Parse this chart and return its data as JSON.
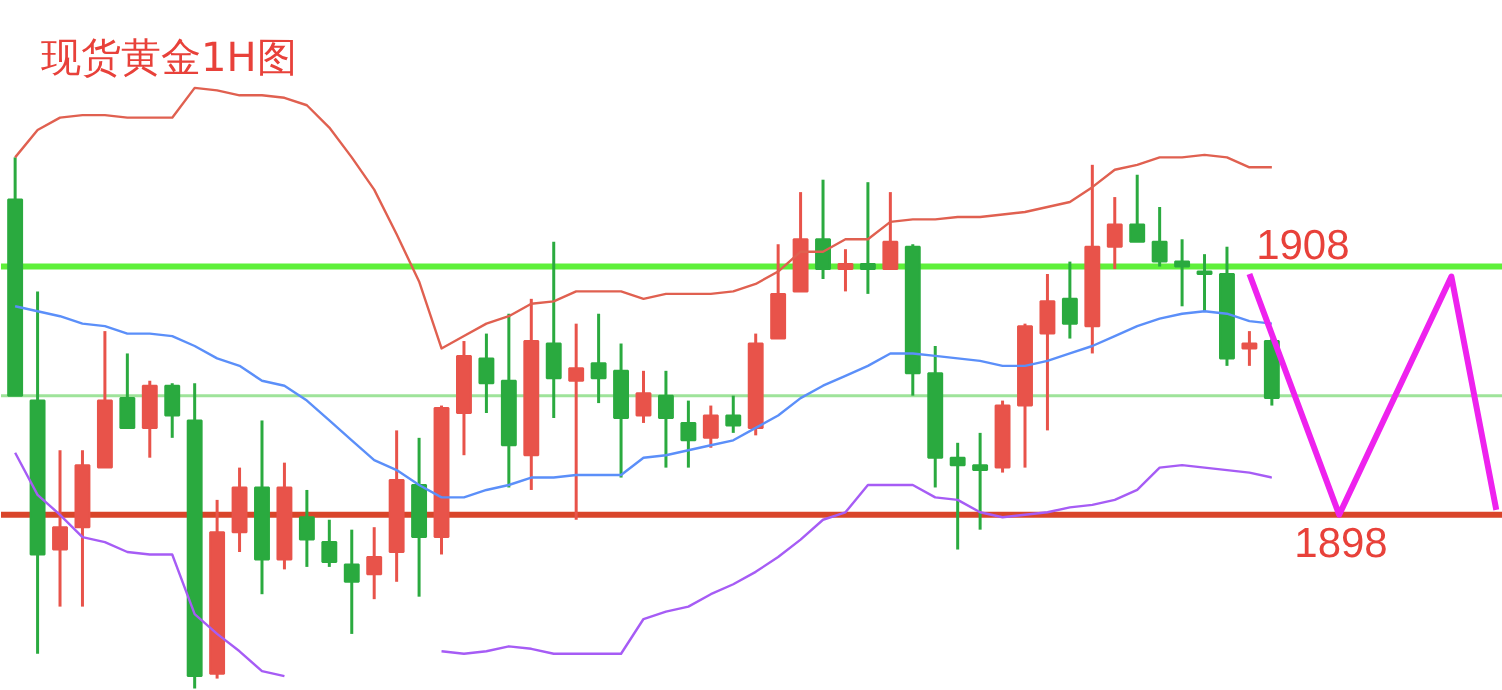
{
  "chart_data": {
    "type": "candlestick",
    "title": "现货黄金1H图",
    "categories": [
      null,
      null,
      null,
      null,
      null,
      null,
      null,
      null,
      null,
      null,
      null,
      null,
      null,
      null,
      null,
      null,
      null,
      null,
      null,
      null,
      null,
      null,
      null,
      null,
      null,
      null,
      null,
      null,
      null,
      null,
      null,
      null,
      null,
      null,
      null,
      null,
      null,
      null,
      null,
      null,
      null,
      null,
      null,
      null,
      null,
      null,
      null,
      null,
      null,
      null,
      null,
      null,
      null,
      null,
      null,
      null,
      null,
      null,
      null,
      null,
      null,
      null,
      null,
      null,
      null,
      null,
      null
    ],
    "ohlc": [
      [
        1910.7,
        1912.4,
        1902.8,
        1902.8
      ],
      [
        1902.6,
        1907.0,
        1892.4,
        1896.4
      ],
      [
        1896.6,
        1900.6,
        1894.3,
        1897.5
      ],
      [
        1897.5,
        1900.6,
        1894.3,
        1900.0
      ],
      [
        1899.9,
        1905.4,
        1899.9,
        1902.6
      ],
      [
        1902.7,
        1904.5,
        1901.5,
        1901.5
      ],
      [
        1901.5,
        1903.4,
        1900.3,
        1903.2
      ],
      [
        1903.2,
        1903.3,
        1901.1,
        1902.0
      ],
      [
        1901.8,
        1903.3,
        1891.0,
        1891.5
      ],
      [
        1891.6,
        1898.6,
        1891.4,
        1897.3
      ],
      [
        1897.3,
        1899.9,
        1896.5,
        1899.1
      ],
      [
        1899.1,
        1901.8,
        1894.8,
        1896.2
      ],
      [
        1896.2,
        1900.1,
        1895.8,
        1899.1
      ],
      [
        1897.9,
        1899.0,
        1895.9,
        1897.0
      ],
      [
        1896.9,
        1897.8,
        1895.9,
        1896.1
      ],
      [
        1896.0,
        1897.4,
        1893.2,
        1895.3
      ],
      [
        1895.6,
        1897.5,
        1894.6,
        1896.3
      ],
      [
        1896.5,
        1901.4,
        1895.3,
        1899.4
      ],
      [
        1899.2,
        1901.1,
        1894.7,
        1897.1
      ],
      [
        1897.1,
        1902.4,
        1896.4,
        1902.3
      ],
      [
        1902.1,
        1905.0,
        1900.4,
        1904.4
      ],
      [
        1904.3,
        1905.3,
        1902.1,
        1903.3
      ],
      [
        1903.4,
        1906.1,
        1899.1,
        1900.8
      ],
      [
        1900.4,
        1906.7,
        1899.0,
        1905.0
      ],
      [
        1904.9,
        1909.0,
        1901.9,
        1903.5
      ],
      [
        1903.4,
        1905.7,
        1897.8,
        1903.9
      ],
      [
        1904.1,
        1906.1,
        1902.5,
        1903.5
      ],
      [
        1903.8,
        1904.9,
        1899.5,
        1901.9
      ],
      [
        1902.0,
        1903.8,
        1901.7,
        1902.9
      ],
      [
        1902.8,
        1903.8,
        1899.9,
        1901.9
      ],
      [
        1901.7,
        1902.6,
        1899.9,
        1901.0
      ],
      [
        1901.1,
        1902.4,
        1900.7,
        1902.0
      ],
      [
        1902.0,
        1902.8,
        1901.3,
        1901.6
      ],
      [
        1901.5,
        1905.3,
        1901.2,
        1904.9
      ],
      [
        1905.1,
        1908.9,
        1905.1,
        1906.9
      ],
      [
        1907.0,
        1911.0,
        1907.0,
        1909.1
      ],
      [
        1909.1,
        1911.5,
        1907.5,
        1907.9
      ],
      [
        1907.9,
        1908.7,
        1907.0,
        1908.1
      ],
      [
        1908.1,
        1911.4,
        1906.9,
        1907.9
      ],
      [
        1907.9,
        1911.0,
        1907.9,
        1909.0
      ],
      [
        1908.8,
        1908.9,
        1902.8,
        1903.7
      ],
      [
        1903.7,
        1904.8,
        1899.1,
        1900.3
      ],
      [
        1900.3,
        1900.9,
        1896.6,
        1900.0
      ],
      [
        1900.0,
        1901.3,
        1897.4,
        1899.8
      ],
      [
        1899.9,
        1902.6,
        1899.7,
        1902.4
      ],
      [
        1902.4,
        1905.7,
        1899.9,
        1905.6
      ],
      [
        1905.3,
        1907.7,
        1901.4,
        1906.6
      ],
      [
        1906.7,
        1908.2,
        1905.1,
        1905.7
      ],
      [
        1905.6,
        1912.1,
        1904.5,
        1908.8
      ],
      [
        1908.8,
        1910.8,
        1907.9,
        1909.7
      ],
      [
        1909.7,
        1911.7,
        1909.0,
        1909.0
      ],
      [
        1909.0,
        1910.4,
        1908.0,
        1908.2
      ],
      [
        1908.2,
        1909.1,
        1906.4,
        1908.0
      ],
      [
        1907.8,
        1908.5,
        1906.2,
        1907.7
      ],
      [
        1907.7,
        1908.8,
        1904.0,
        1904.3
      ],
      [
        1904.7,
        1905.4,
        1904.0,
        1904.9
      ],
      [
        1905.0,
        1905.1,
        1902.4,
        1902.7
      ],
      null,
      null,
      null,
      null,
      null,
      null,
      null,
      null,
      null,
      null
    ],
    "colors": [
      "#2aaa3f",
      "#2aaa3f",
      "#e8534a",
      "#e8534a",
      "#e8534a",
      "#2aaa3f",
      "#e8534a",
      "#2aaa3f",
      "#2aaa3f",
      "#e8534a",
      "#e8534a",
      "#2aaa3f",
      "#e8534a",
      "#2aaa3f",
      "#2aaa3f",
      "#2aaa3f",
      "#e8534a",
      "#e8534a",
      "#2aaa3f",
      "#e8534a",
      "#e8534a",
      "#2aaa3f",
      "#2aaa3f",
      "#e8534a",
      "#2aaa3f",
      "#e8534a",
      "#2aaa3f",
      "#2aaa3f",
      "#e8534a",
      "#2aaa3f",
      "#2aaa3f",
      "#e8534a",
      "#2aaa3f",
      "#e8534a",
      "#e8534a",
      "#e8534a",
      "#2aaa3f",
      "#e8534a",
      "#2aaa3f",
      "#e8534a",
      "#2aaa3f",
      "#2aaa3f",
      "#2aaa3f",
      "#2aaa3f",
      "#e8534a",
      "#e8534a",
      "#e8534a",
      "#2aaa3f",
      "#e8534a",
      "#e8534a",
      "#2aaa3f",
      "#2aaa3f",
      "#2aaa3f",
      "#2aaa3f",
      "#2aaa3f",
      "#e8534a",
      "#2aaa3f",
      null,
      null,
      null,
      null,
      null,
      null,
      null,
      null,
      null,
      null
    ],
    "series": [
      {
        "type": "line",
        "color": "#e06050",
        "values": [
          1912.4,
          1913.5,
          1914.0,
          1914.1,
          1914.1,
          1914.0,
          1914.0,
          1914.0,
          1915.2,
          1915.1,
          1914.9,
          1914.9,
          1914.8,
          1914.5,
          1913.6,
          1912.4,
          1911.1,
          1909.3,
          1907.4,
          1904.7,
          1905.2,
          1905.7,
          1906.0,
          1906.5,
          1906.6,
          1907.0,
          1907.0,
          1907.0,
          1906.7,
          1906.9,
          1906.9,
          1906.9,
          1907.0,
          1907.3,
          1907.8,
          1908.6,
          1908.6,
          1909.1,
          1909.1,
          1909.8,
          1909.9,
          1909.9,
          1910.0,
          1910.0,
          1910.1,
          1910.2,
          1910.4,
          1910.6,
          1911.2,
          1911.9,
          1912.1,
          1912.4,
          1912.4,
          1912.5,
          1912.4,
          1912.0,
          1912.0,
          null,
          null,
          null,
          null,
          null,
          null,
          null,
          null,
          null,
          null
        ]
      },
      {
        "type": "line",
        "color": "#5b8ff9",
        "values": [
          1906.4,
          1906.2,
          1906.0,
          1905.7,
          1905.6,
          1905.3,
          1905.3,
          1905.2,
          1904.8,
          1904.3,
          1904.0,
          1903.4,
          1903.2,
          1902.6,
          1901.8,
          1901.0,
          1900.2,
          1899.8,
          1899.2,
          1898.7,
          1898.7,
          1899.0,
          1899.2,
          1899.5,
          1899.5,
          1899.6,
          1899.6,
          1899.6,
          1900.3,
          1900.4,
          1900.6,
          1900.8,
          1901.0,
          1901.5,
          1902.0,
          1902.7,
          1903.2,
          1903.6,
          1904.0,
          1904.5,
          1904.5,
          1904.4,
          1904.3,
          1904.2,
          1904.0,
          1904.0,
          1904.2,
          1904.5,
          1904.8,
          1905.2,
          1905.6,
          1905.9,
          1906.1,
          1906.2,
          1906.1,
          1905.8,
          1905.7,
          null,
          null,
          null,
          null,
          null,
          null,
          null,
          null,
          null,
          null
        ]
      },
      {
        "type": "line",
        "color": "#a65cf5",
        "values": [
          1900.5,
          1898.8,
          1898.0,
          1897.1,
          1896.9,
          1896.5,
          1896.4,
          1896.4,
          1894.0,
          1893.2,
          1892.5,
          1891.7,
          1891.5,
          null,
          null,
          null,
          null,
          null,
          null,
          1892.5,
          1892.4,
          1892.5,
          1892.7,
          1892.6,
          1892.4,
          1892.4,
          1892.4,
          1892.4,
          1893.8,
          1894.1,
          1894.3,
          1894.8,
          1895.2,
          1895.7,
          1896.3,
          1897.0,
          1897.8,
          1898.1,
          1899.2,
          1899.2,
          1899.2,
          1898.7,
          1898.6,
          1898.1,
          1897.9,
          1898.0,
          1898.1,
          1898.3,
          1898.4,
          1898.6,
          1899.0,
          1899.9,
          1900.0,
          1899.9,
          1899.8,
          1899.7,
          1899.5,
          null,
          null,
          null,
          null,
          null,
          null,
          null,
          null,
          null,
          null
        ]
      },
      {
        "type": "line",
        "color": "#ee22ee",
        "values": [
          null,
          null,
          null,
          null,
          null,
          null,
          null,
          null,
          null,
          null,
          null,
          null,
          null,
          null,
          null,
          null,
          null,
          null,
          null,
          null,
          null,
          null,
          null,
          null,
          null,
          null,
          null,
          null,
          null,
          null,
          null,
          null,
          null,
          null,
          null,
          null,
          null,
          null,
          null,
          null,
          null,
          null,
          null,
          null,
          null,
          null,
          null,
          null,
          null,
          null,
          null,
          null,
          null,
          null,
          null,
          1907.7,
          null,
          null,
          null,
          1898.0,
          null,
          null,
          null,
          null,
          1907.6,
          null,
          1898.2
        ]
      }
    ],
    "ref_lines": [
      {
        "axis": "y",
        "value": 1908,
        "label": "1908",
        "color": "#5ef03a"
      },
      {
        "axis": "y",
        "value": 1898,
        "label": "1898",
        "color": "#d9452a"
      },
      {
        "axis": "y",
        "value": 1902.8,
        "color": "#9ee39a"
      }
    ],
    "ylim": [
      1890.9,
      1918.7
    ],
    "tick_labels": false
  }
}
